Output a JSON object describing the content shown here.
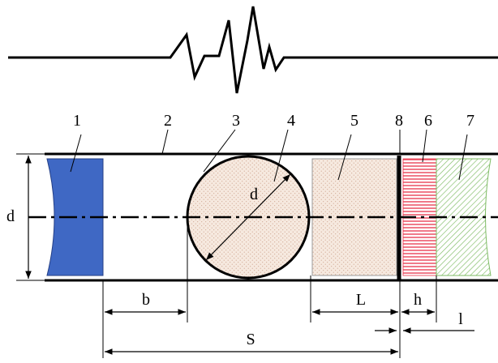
{
  "labels": {
    "part1": "1",
    "part2": "2",
    "part3": "3",
    "part4": "4",
    "part5": "5",
    "part8": "8",
    "part6": "6",
    "part7": "7",
    "diameter_left": "d",
    "diameter_ball": "d",
    "dim_b": "b",
    "dim_L": "L",
    "dim_h": "h",
    "dim_l": "l",
    "dim_S": "S"
  },
  "colors": {
    "blue_piece": "#3f68c4",
    "ball_fill": "#f6e9df",
    "block_fill": "#f7ebe3",
    "red_hatch": "#e8344a",
    "green_hatch": "#7dbb63",
    "line": "#000000"
  }
}
